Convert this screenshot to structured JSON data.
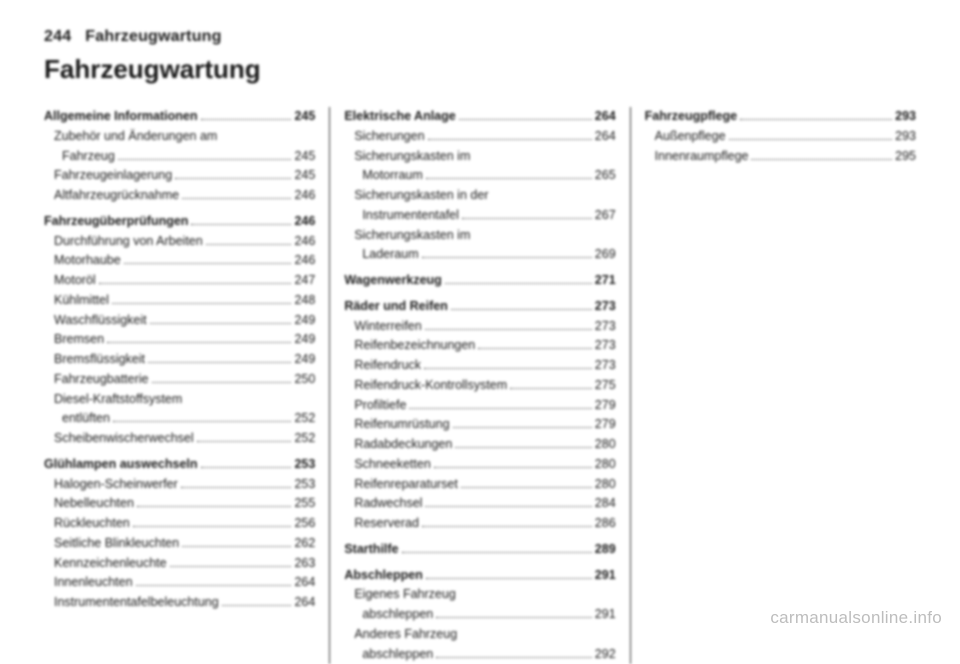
{
  "header": {
    "page_number": "244",
    "section": "Fahrzeugwartung"
  },
  "title": "Fahrzeugwartung",
  "watermark": "carmanualsonline.info",
  "columns": [
    {
      "items": [
        {
          "level": 0,
          "text": "Allgemeine Informationen",
          "page": "245"
        },
        {
          "level": 1,
          "text": "Zubehör und Änderungen am",
          "cont": "Fahrzeug",
          "page": "245"
        },
        {
          "level": 1,
          "text": "Fahrzeugeinlagerung",
          "page": "245"
        },
        {
          "level": 1,
          "text": "Altfahrzeugrücknahme",
          "page": "246"
        },
        {
          "level": 0,
          "text": "Fahrzeugüberprüfungen",
          "page": "246"
        },
        {
          "level": 1,
          "text": "Durchführung von Arbeiten",
          "page": "246"
        },
        {
          "level": 1,
          "text": "Motorhaube",
          "page": "246"
        },
        {
          "level": 1,
          "text": "Motoröl",
          "page": "247"
        },
        {
          "level": 1,
          "text": "Kühlmittel",
          "page": "248"
        },
        {
          "level": 1,
          "text": "Waschflüssigkeit",
          "page": "249"
        },
        {
          "level": 1,
          "text": "Bremsen",
          "page": "249"
        },
        {
          "level": 1,
          "text": "Bremsflüssigkeit",
          "page": "249"
        },
        {
          "level": 1,
          "text": "Fahrzeugbatterie",
          "page": "250"
        },
        {
          "level": 1,
          "text": "Diesel-Kraftstoffsystem",
          "cont": "entlüften",
          "page": "252"
        },
        {
          "level": 1,
          "text": "Scheibenwischerwechsel",
          "page": "252"
        },
        {
          "level": 0,
          "text": "Glühlampen auswechseln",
          "page": "253"
        },
        {
          "level": 1,
          "text": "Halogen-Scheinwerfer",
          "page": "253"
        },
        {
          "level": 1,
          "text": "Nebelleuchten",
          "page": "255"
        },
        {
          "level": 1,
          "text": "Rückleuchten",
          "page": "256"
        },
        {
          "level": 1,
          "text": "Seitliche Blinkleuchten",
          "page": "262"
        },
        {
          "level": 1,
          "text": "Kennzeichenleuchte",
          "page": "263"
        },
        {
          "level": 1,
          "text": "Innenleuchten",
          "page": "264"
        },
        {
          "level": 1,
          "text": "Instrumententafelbeleuchtung",
          "page": "264",
          "tight": true
        }
      ]
    },
    {
      "items": [
        {
          "level": 0,
          "text": "Elektrische Anlage",
          "page": "264"
        },
        {
          "level": 1,
          "text": "Sicherungen",
          "page": "264"
        },
        {
          "level": 1,
          "text": "Sicherungskasten im",
          "cont": "Motorraum",
          "page": "265"
        },
        {
          "level": 1,
          "text": "Sicherungskasten in der",
          "cont": "Instrumententafel",
          "page": "267"
        },
        {
          "level": 1,
          "text": "Sicherungskasten im",
          "cont": "Laderaum",
          "page": "269"
        },
        {
          "level": 0,
          "text": "Wagenwerkzeug",
          "page": "271"
        },
        {
          "level": 0,
          "text": "Räder und Reifen",
          "page": "273"
        },
        {
          "level": 1,
          "text": "Winterreifen",
          "page": "273"
        },
        {
          "level": 1,
          "text": "Reifenbezeichnungen",
          "page": "273"
        },
        {
          "level": 1,
          "text": "Reifendruck",
          "page": "273"
        },
        {
          "level": 1,
          "text": "Reifendruck-Kontrollsystem",
          "page": "275"
        },
        {
          "level": 1,
          "text": "Profiltiefe",
          "page": "279"
        },
        {
          "level": 1,
          "text": "Reifenumrüstung",
          "page": "279"
        },
        {
          "level": 1,
          "text": "Radabdeckungen",
          "page": "280"
        },
        {
          "level": 1,
          "text": "Schneeketten",
          "page": "280"
        },
        {
          "level": 1,
          "text": "Reifenreparaturset",
          "page": "280"
        },
        {
          "level": 1,
          "text": "Radwechsel",
          "page": "284"
        },
        {
          "level": 1,
          "text": "Reserverad",
          "page": "286"
        },
        {
          "level": 0,
          "text": "Starthilfe",
          "page": "289"
        },
        {
          "level": 0,
          "text": "Abschleppen",
          "page": "291"
        },
        {
          "level": 1,
          "text": "Eigenes Fahrzeug",
          "cont": "abschleppen",
          "page": "291"
        },
        {
          "level": 1,
          "text": "Anderes Fahrzeug",
          "cont": "abschleppen",
          "page": "292"
        }
      ]
    },
    {
      "items": [
        {
          "level": 0,
          "text": "Fahrzeugpflege",
          "page": "293"
        },
        {
          "level": 1,
          "text": "Außenpflege",
          "page": "293"
        },
        {
          "level": 1,
          "text": "Innenraumpflege",
          "page": "295"
        }
      ]
    }
  ]
}
